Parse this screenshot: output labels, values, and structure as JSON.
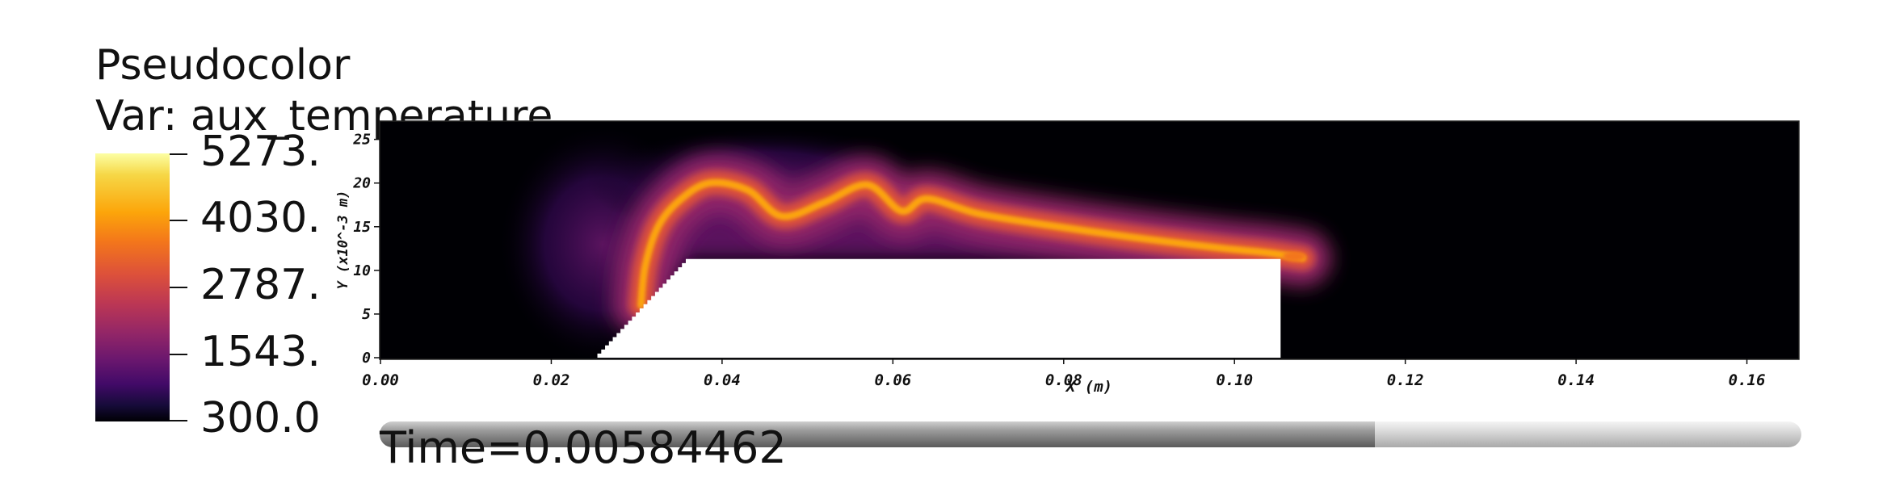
{
  "legend": {
    "title_line1": "Pseudocolor",
    "title_line2": "Var: aux_temperature",
    "labels": [
      "5273.",
      "4030.",
      "2787.",
      "1543.",
      "300.0"
    ],
    "colormap": "inferno",
    "colors": [
      "#fcffa4",
      "#f6d746",
      "#fca50a",
      "#f3761b",
      "#dd513a",
      "#bc3754",
      "#932667",
      "#6a176e",
      "#420a68",
      "#160b39",
      "#000004"
    ]
  },
  "chart_data": {
    "type": "heatmap",
    "variable": "aux_temperature",
    "value_range": [
      300.0,
      5273.0
    ],
    "xlabel": "X (m)",
    "ylabel": "Y (x10^-3 m)",
    "xlim": [
      0.0,
      0.166
    ],
    "ylim": [
      0,
      27
    ],
    "x_ticks": [
      0.0,
      0.02,
      0.04,
      0.06,
      0.08,
      0.1,
      0.12,
      0.14,
      0.16
    ],
    "x_tick_labels": [
      "0.00",
      "0.02",
      "0.04",
      "0.06",
      "0.08",
      "0.10",
      "0.12",
      "0.14",
      "0.16"
    ],
    "y_ticks": [
      0,
      5,
      10,
      15,
      20,
      25
    ],
    "y_tick_labels": [
      "0",
      "5",
      "10",
      "15",
      "20",
      "25"
    ],
    "background_value": 300.0,
    "obstacle": {
      "stair_ramp": [
        [
          0.0254,
          0
        ],
        [
          0.0362,
          11.3
        ]
      ],
      "top_right_corner": [
        0.1054,
        11.3
      ],
      "bottom_right_corner": [
        0.1054,
        0
      ]
    },
    "flame_front_centerline": {
      "x": [
        0.0305,
        0.031,
        0.0325,
        0.035,
        0.0385,
        0.043,
        0.047,
        0.052,
        0.057,
        0.061,
        0.064,
        0.07,
        0.078,
        0.088,
        0.098,
        0.104,
        0.108
      ],
      "y": [
        6.0,
        10.5,
        15.0,
        18.0,
        20.0,
        19.2,
        16.2,
        17.8,
        19.8,
        16.8,
        18.2,
        16.5,
        15.2,
        13.8,
        12.6,
        12.0,
        11.4
      ]
    },
    "grid": false
  },
  "time": {
    "label": "Time=0.00584462",
    "progress_fraction": 0.7
  }
}
